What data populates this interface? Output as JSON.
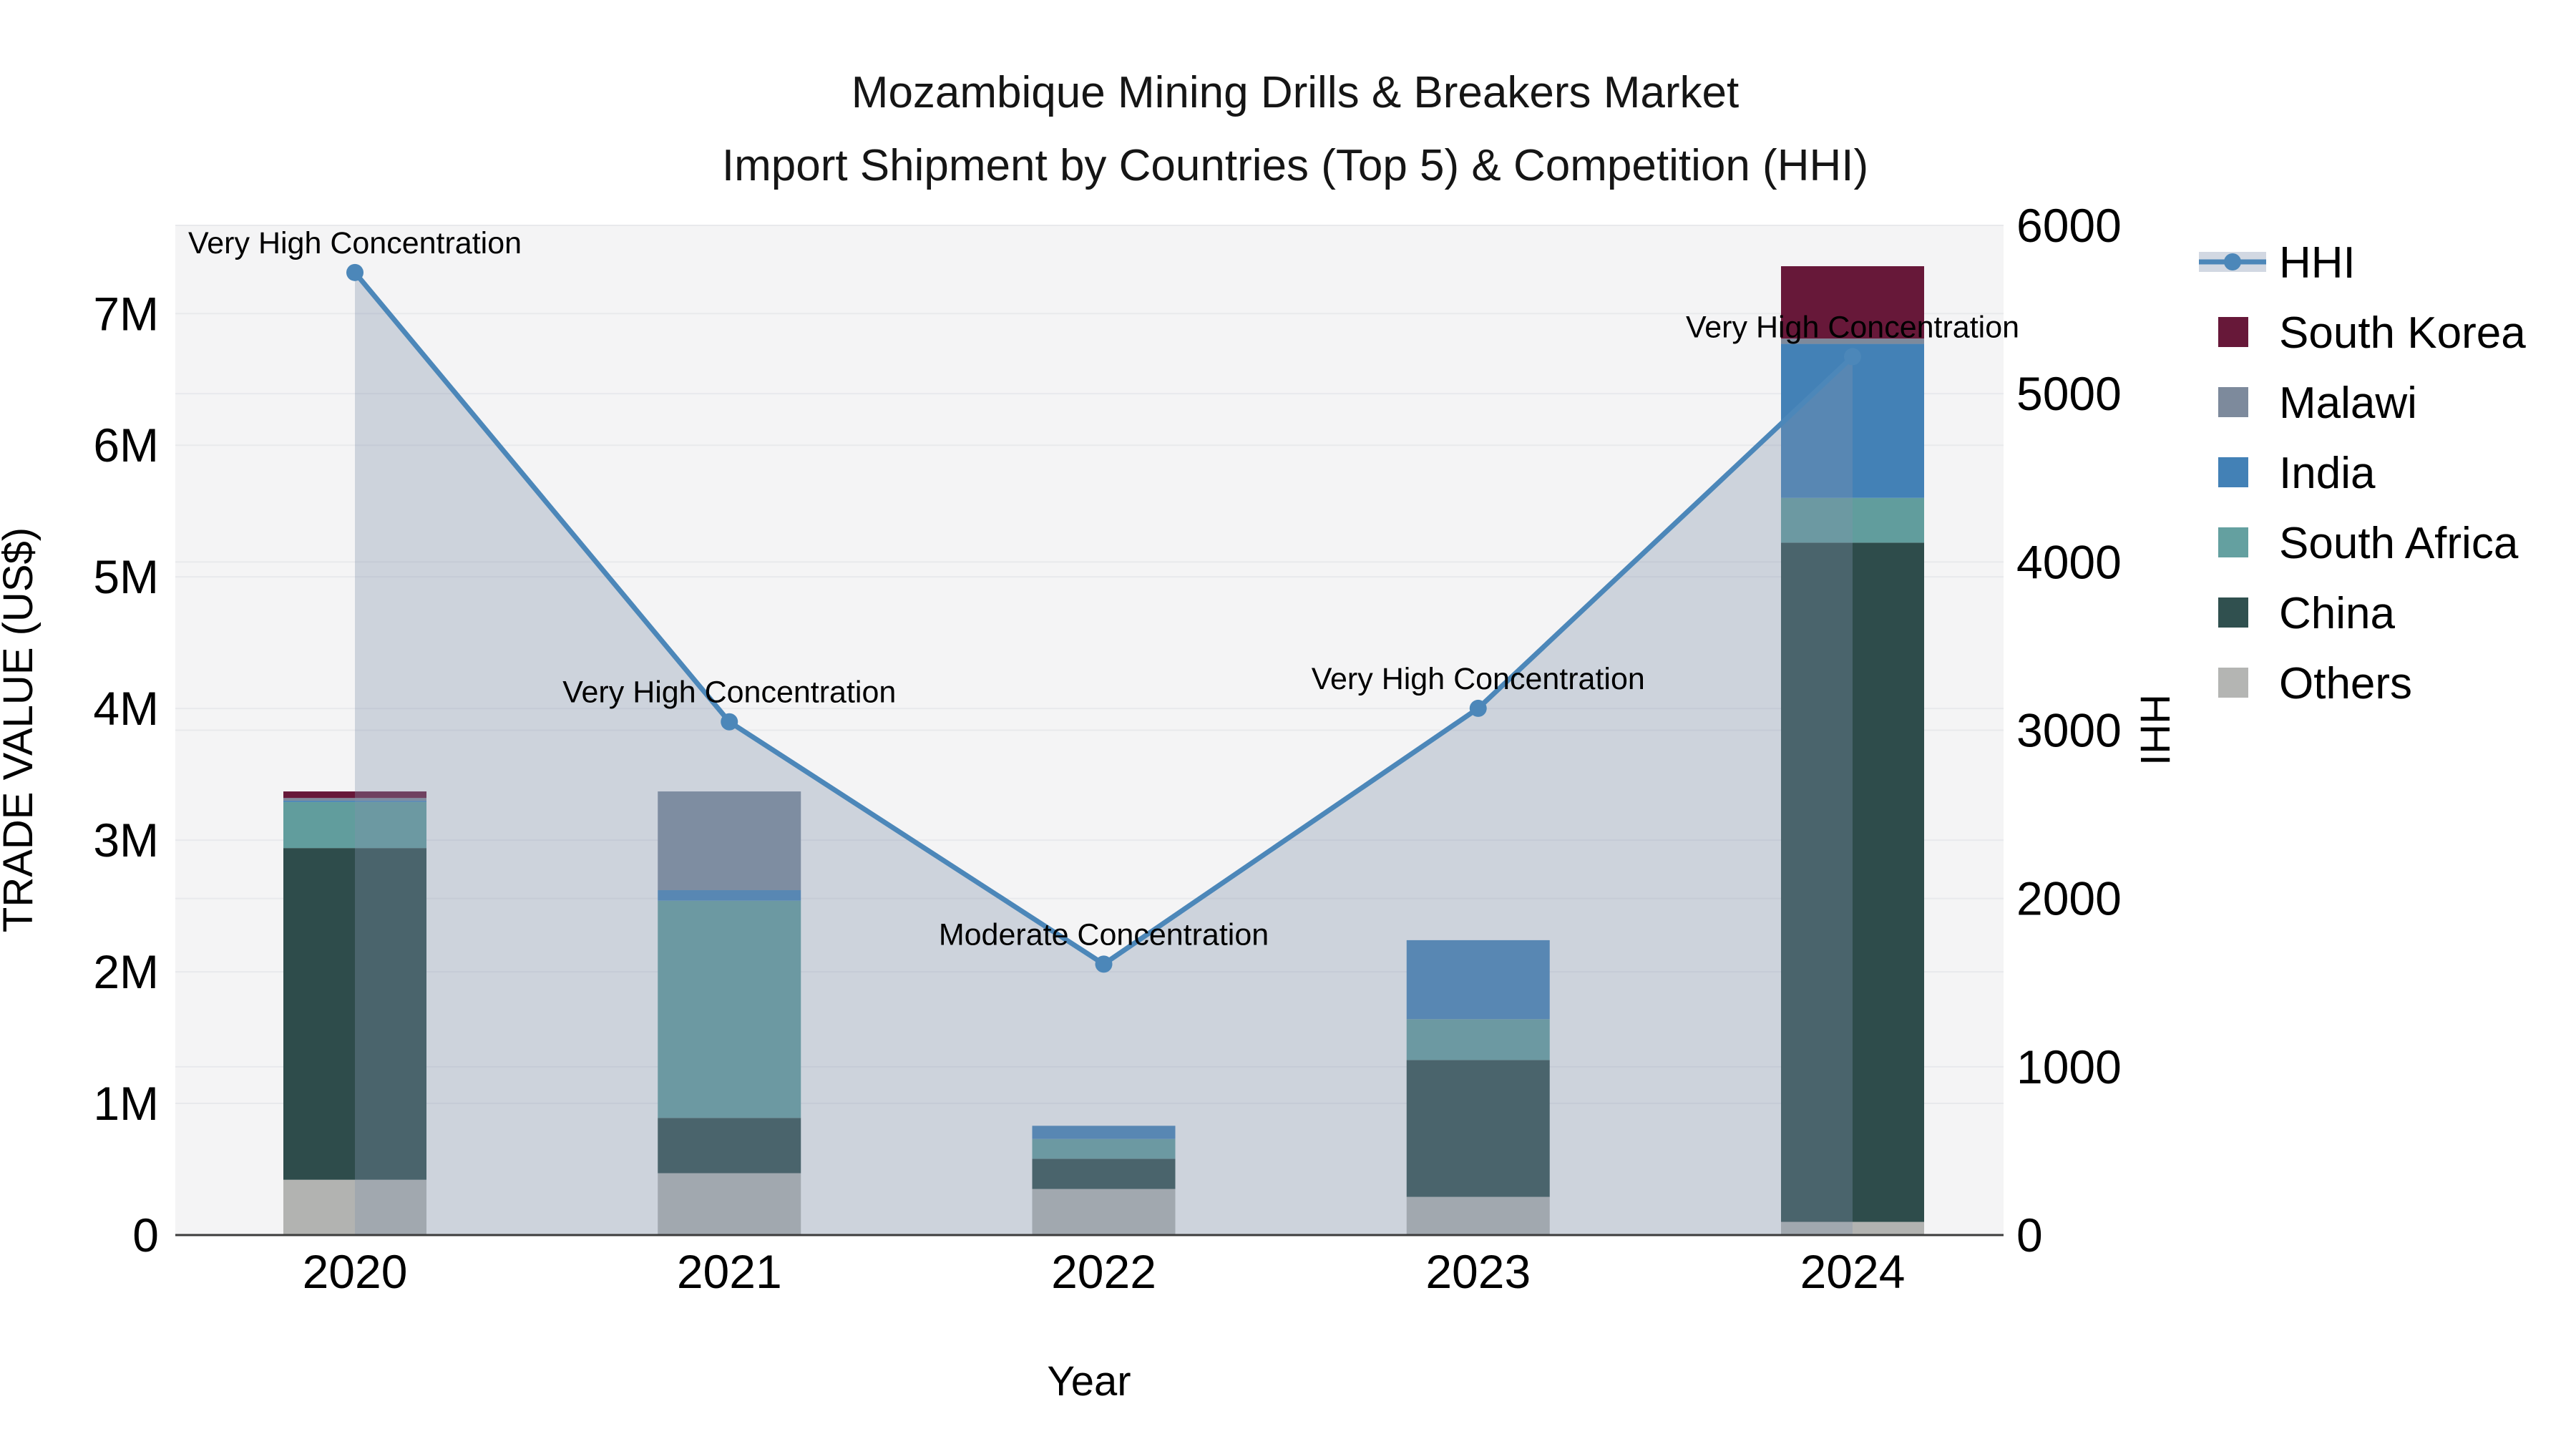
{
  "figure": {
    "title_line1": "Mozambique Mining Drills & Breakers Market",
    "title_line2": "Import Shipment by Countries (Top 5) & Competition (HHI)",
    "background": "#ffffff"
  },
  "axes": {
    "x_label": "Year",
    "y_left_label": "TRADE VALUE (US$)",
    "y_right_label": "HHI",
    "x_ticks": [
      "2020",
      "2021",
      "2022",
      "2023",
      "2024"
    ],
    "y_left_ticks": [
      "0",
      "1M",
      "2M",
      "3M",
      "4M",
      "5M",
      "6M",
      "7M"
    ],
    "y_right_ticks": [
      "0",
      "1000",
      "2000",
      "3000",
      "4000",
      "5000",
      "6000"
    ]
  },
  "chart_data": {
    "type": "bar",
    "subtype": "stacked-bar-with-dual-axis-line-overlay",
    "title": "Mozambique Mining Drills & Breakers Market — Import Shipment by Countries (Top 5) & Competition (HHI)",
    "xlabel": "Year",
    "ylabel_left": "TRADE VALUE (US$)",
    "ylabel_right": "HHI",
    "categories": [
      "2020",
      "2021",
      "2022",
      "2023",
      "2024"
    ],
    "unit_left": "US$ millions",
    "y_left_range_millions": [
      0,
      7.67
    ],
    "y_right_range": [
      0,
      6000
    ],
    "grid": true,
    "series": [
      {
        "name": "Others",
        "color": "#b2b3b1",
        "values_musd": [
          0.42,
          0.47,
          0.35,
          0.29,
          0.1
        ]
      },
      {
        "name": "China",
        "color": "#2e4c4b",
        "values_musd": [
          2.52,
          0.42,
          0.23,
          1.04,
          5.16
        ]
      },
      {
        "name": "South Africa",
        "color": "#619d9d",
        "values_musd": [
          0.35,
          1.65,
          0.15,
          0.31,
          0.34
        ]
      },
      {
        "name": "India",
        "color": "#4381b6",
        "values_musd": [
          0.01,
          0.08,
          0.1,
          0.6,
          1.17
        ]
      },
      {
        "name": "Malawi",
        "color": "#7d8a9c",
        "values_musd": [
          0.02,
          0.75,
          0.0,
          0.0,
          0.04
        ]
      },
      {
        "name": "South Korea",
        "color": "#671839",
        "values_musd": [
          0.05,
          0.0,
          0.0,
          0.0,
          0.55
        ]
      }
    ],
    "line_series": {
      "name": "HHI",
      "axis": "right",
      "values": [
        5720,
        3050,
        1610,
        3130,
        5220
      ],
      "color": "#4c87b9",
      "area_fill": "rgba(130,146,173,0.34)",
      "marker": "circle"
    },
    "annotations": [
      {
        "category": "2020",
        "text": "Very High Concentration"
      },
      {
        "category": "2021",
        "text": "Very High Concentration"
      },
      {
        "category": "2022",
        "text": "Moderate Concentration"
      },
      {
        "category": "2023",
        "text": "Very High Concentration"
      },
      {
        "category": "2024",
        "text": "Very High Concentration"
      }
    ],
    "legend": {
      "position": "right",
      "items": [
        {
          "label": "HHI",
          "type": "line",
          "color": "#4c87b9"
        },
        {
          "label": "South Korea",
          "type": "patch",
          "color": "#671839"
        },
        {
          "label": "Malawi",
          "type": "patch",
          "color": "#7d8a9c"
        },
        {
          "label": "India",
          "type": "patch",
          "color": "#4381b6"
        },
        {
          "label": "South Africa",
          "type": "patch",
          "color": "#64a0a0"
        },
        {
          "label": "China",
          "type": "patch",
          "color": "#30504f"
        },
        {
          "label": "Others",
          "type": "patch",
          "color": "#b4b5b3"
        }
      ]
    },
    "style": {
      "plot_bg": "#f4f4f5",
      "grid_color": "#e8e9ec",
      "spine_color": "#3c3c3c",
      "legend_line_band": "#d2d8e2"
    }
  }
}
